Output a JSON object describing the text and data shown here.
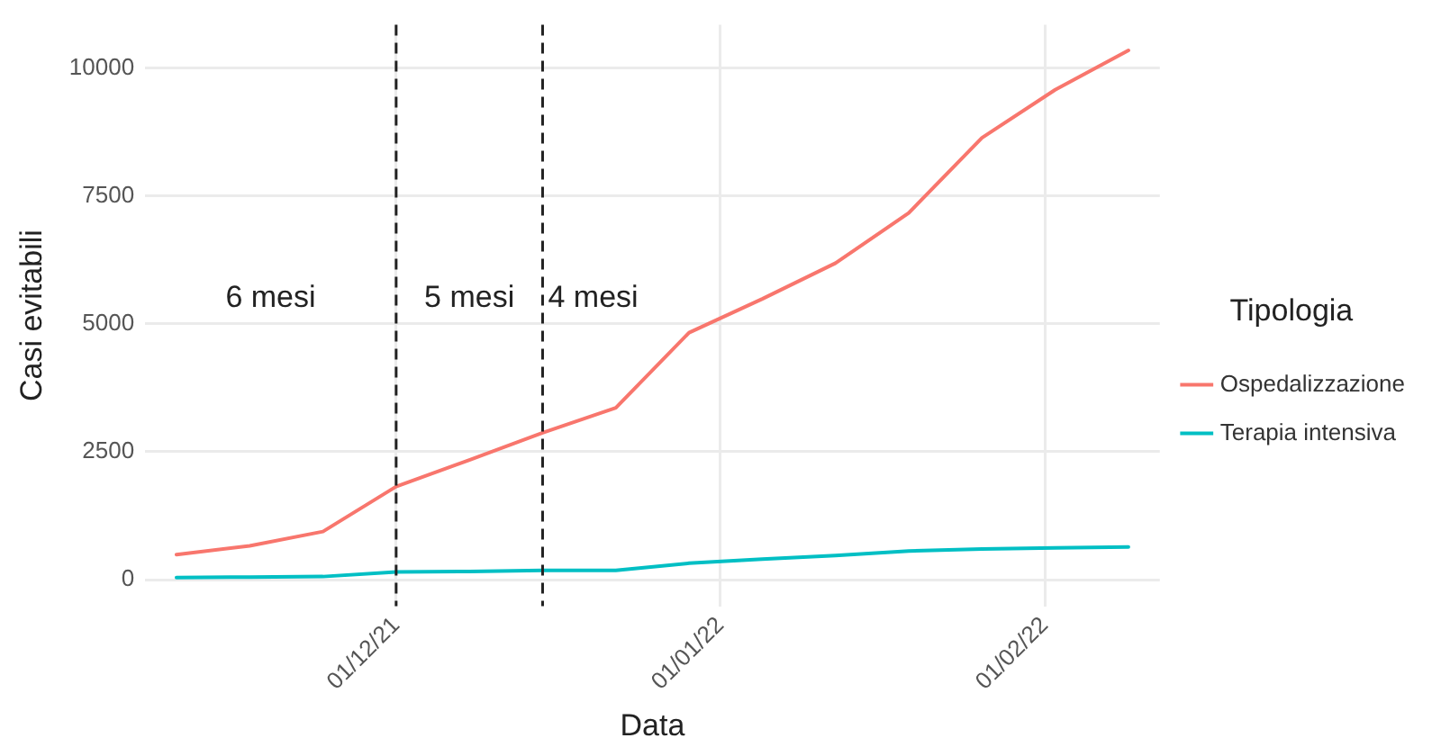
{
  "chart_data": {
    "type": "line",
    "xlabel": "Data",
    "ylabel": "Casi evitabili",
    "legend_title": "Tipologia",
    "x": [
      "2021-11-10",
      "2021-11-17",
      "2021-11-24",
      "2021-12-01",
      "2021-12-08",
      "2021-12-15",
      "2021-12-22",
      "2021-12-29",
      "2022-01-05",
      "2022-01-12",
      "2022-01-19",
      "2022-01-26",
      "2022-02-02",
      "2022-02-09"
    ],
    "series": [
      {
        "name": "Ospedalizzazione",
        "color": "#f8766d",
        "values": [
          490,
          660,
          940,
          1820,
          2340,
          2870,
          3360,
          4830,
          5490,
          6190,
          7170,
          8640,
          9580,
          10350
        ]
      },
      {
        "name": "Terapia intensiva",
        "color": "#00bfc4",
        "values": [
          40,
          50,
          60,
          150,
          160,
          180,
          180,
          320,
          400,
          470,
          560,
          600,
          620,
          640
        ]
      }
    ],
    "xlim": [
      "2021-11-07",
      "2022-02-12"
    ],
    "xticks": [
      {
        "value": "2021-12-01",
        "label": "01/12/21"
      },
      {
        "value": "2022-01-01",
        "label": "01/01/22"
      },
      {
        "value": "2022-02-01",
        "label": "01/02/22"
      }
    ],
    "ylim": [
      -520,
      10850
    ],
    "yticks": [
      0,
      2500,
      5000,
      7500,
      10000
    ],
    "ref_lines": [
      {
        "axis": "x",
        "value": "2021-12-01",
        "color": "#222222",
        "line_style": "dashed"
      },
      {
        "axis": "x",
        "value": "2021-12-15",
        "color": "#222222",
        "line_style": "dashed"
      }
    ],
    "annotations": [
      "6 mesi",
      "5 mesi",
      "4 mesi"
    ],
    "grid": true,
    "legend": "right",
    "marker": "none",
    "line_style": "solid"
  }
}
